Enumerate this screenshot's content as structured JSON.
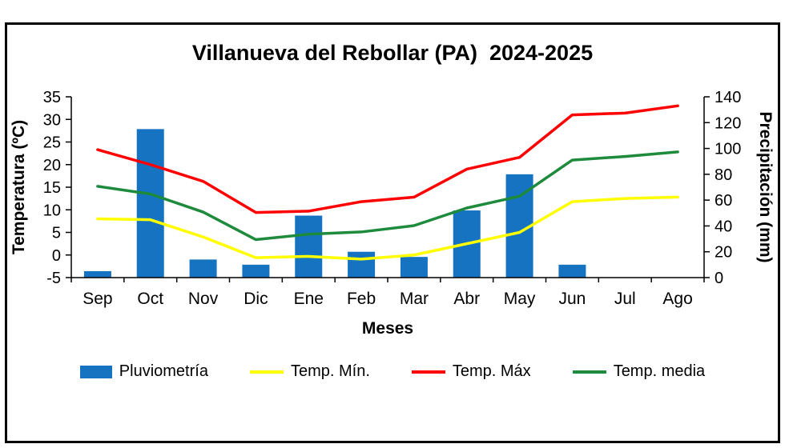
{
  "window": {
    "background_color": "#ffffff",
    "frame_border_color": "#000000"
  },
  "chart_data": {
    "type": "combo-bar-line",
    "title": "Villanueva del Rebollar (PA)  2024-2025",
    "xlabel": "Meses",
    "ylabel_left": "Temperatura (ºC)",
    "ylabel_right": "Precipitación (mm)",
    "categories": [
      "Sep",
      "Oct",
      "Nov",
      "Dic",
      "Ene",
      "Feb",
      "Mar",
      "Abr",
      "May",
      "Jun",
      "Jul",
      "Ago"
    ],
    "temp_axis": {
      "min": -5,
      "max": 35,
      "step": 5
    },
    "precip_axis": {
      "min": 0,
      "max": 140,
      "step": 20
    },
    "grid": false,
    "legend_position": "bottom",
    "series": [
      {
        "id": "pluviometria",
        "name": "Pluviometría",
        "type": "bar",
        "axis": "right",
        "color": "#1573c2",
        "values": [
          5,
          115,
          14,
          10,
          48,
          20,
          16,
          52,
          80,
          10,
          0,
          0
        ]
      },
      {
        "id": "temp-min",
        "name": "Temp. Mín.",
        "type": "line",
        "axis": "left",
        "color": "#ffff00",
        "values": [
          8,
          7.8,
          4,
          -0.6,
          -0.3,
          -0.9,
          0,
          2.5,
          5,
          11.8,
          12.5,
          12.8
        ]
      },
      {
        "id": "temp-max",
        "name": "Temp. Máx",
        "type": "line",
        "axis": "left",
        "color": "#ff0000",
        "values": [
          23.3,
          20,
          16.3,
          9.4,
          9.7,
          11.8,
          12.8,
          19,
          21.6,
          31,
          31.4,
          33
        ]
      },
      {
        "id": "temp-media",
        "name": "Temp. media",
        "type": "line",
        "axis": "left",
        "color": "#1e8a3c",
        "values": [
          15.2,
          13.5,
          9.5,
          3.4,
          4.6,
          5.1,
          6.5,
          10.4,
          13,
          21,
          21.8,
          22.8
        ]
      }
    ]
  }
}
